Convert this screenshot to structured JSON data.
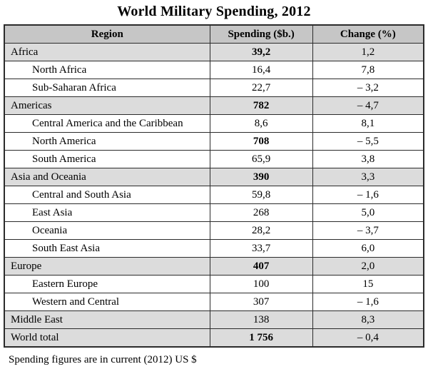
{
  "title": "World Military Spending, 2012",
  "footnote": "Spending figures are in current (2012) US $",
  "columns": {
    "region": "Region",
    "spending": "Spending ($b.)",
    "change": "Change (%)"
  },
  "rows": [
    {
      "region": "Africa",
      "spending": "39,2",
      "change": "1,2"
    },
    {
      "region": "North Africa",
      "spending": "16,4",
      "change": "7,8"
    },
    {
      "region": "Sub-Saharan Africa",
      "spending": "22,7",
      "change": "– 3,2"
    },
    {
      "region": "Americas",
      "spending": "782",
      "change": "– 4,7"
    },
    {
      "region": "Central America and the Caribbean",
      "spending": "8,6",
      "change": "8,1"
    },
    {
      "region": "North America",
      "spending": "708",
      "change": "– 5,5"
    },
    {
      "region": "South America",
      "spending": "65,9",
      "change": "3,8"
    },
    {
      "region": "Asia and Oceania",
      "spending": "390",
      "change": "3,3"
    },
    {
      "region": "Central and South Asia",
      "spending": "59,8",
      "change": "– 1,6"
    },
    {
      "region": "East Asia",
      "spending": "268",
      "change": "5,0"
    },
    {
      "region": "Oceania",
      "spending": "28,2",
      "change": "– 3,7"
    },
    {
      "region": "South East Asia",
      "spending": "33,7",
      "change": "6,0"
    },
    {
      "region": "Europe",
      "spending": "407",
      "change": "2,0"
    },
    {
      "region": "Eastern Europe",
      "spending": "100",
      "change": "15"
    },
    {
      "region": "Western and Central",
      "spending": "307",
      "change": "– 1,6"
    },
    {
      "region": "Middle East",
      "spending": "138",
      "change": "8,3"
    },
    {
      "region": "World total",
      "spending": "1 756",
      "change": "– 0,4"
    }
  ],
  "colors": {
    "header_bg": "#c6c6c6",
    "category_row_bg": "#dcdcdc",
    "border": "#2b2b2b",
    "text": "#000000",
    "page_bg": "#ffffff"
  },
  "chart_data": {
    "type": "table",
    "title": "World Military Spending, 2012",
    "columns": [
      "Region",
      "Spending ($b.)",
      "Change (%)"
    ],
    "rows": [
      [
        "Africa",
        "39,2",
        "1,2"
      ],
      [
        "North Africa",
        "16,4",
        "7,8"
      ],
      [
        "Sub-Saharan Africa",
        "22,7",
        "– 3,2"
      ],
      [
        "Americas",
        "782",
        "– 4,7"
      ],
      [
        "Central America and the Caribbean",
        "8,6",
        "8,1"
      ],
      [
        "North America",
        "708",
        "– 5,5"
      ],
      [
        "South America",
        "65,9",
        "3,8"
      ],
      [
        "Asia and Oceania",
        "390",
        "3,3"
      ],
      [
        "Central and South Asia",
        "59,8",
        "– 1,6"
      ],
      [
        "East Asia",
        "268",
        "5,0"
      ],
      [
        "Oceania",
        "28,2",
        "– 3,7"
      ],
      [
        "South East Asia",
        "33,7",
        "6,0"
      ],
      [
        "Europe",
        "407",
        "2,0"
      ],
      [
        "Eastern Europe",
        "100",
        "15"
      ],
      [
        "Western and Central",
        "307",
        "– 1,6"
      ],
      [
        "Middle East",
        "138",
        "8,3"
      ],
      [
        "World total",
        "1 756",
        "– 0,4"
      ]
    ],
    "footnote": "Spending figures are in current (2012) US $",
    "layout_hints": "Comma decimal separator; top-level region rows and header shaded gray; sub-region rows indented; spending totals (Africa, Americas, North America, Asia and Oceania, Europe, World total) in bold"
  }
}
